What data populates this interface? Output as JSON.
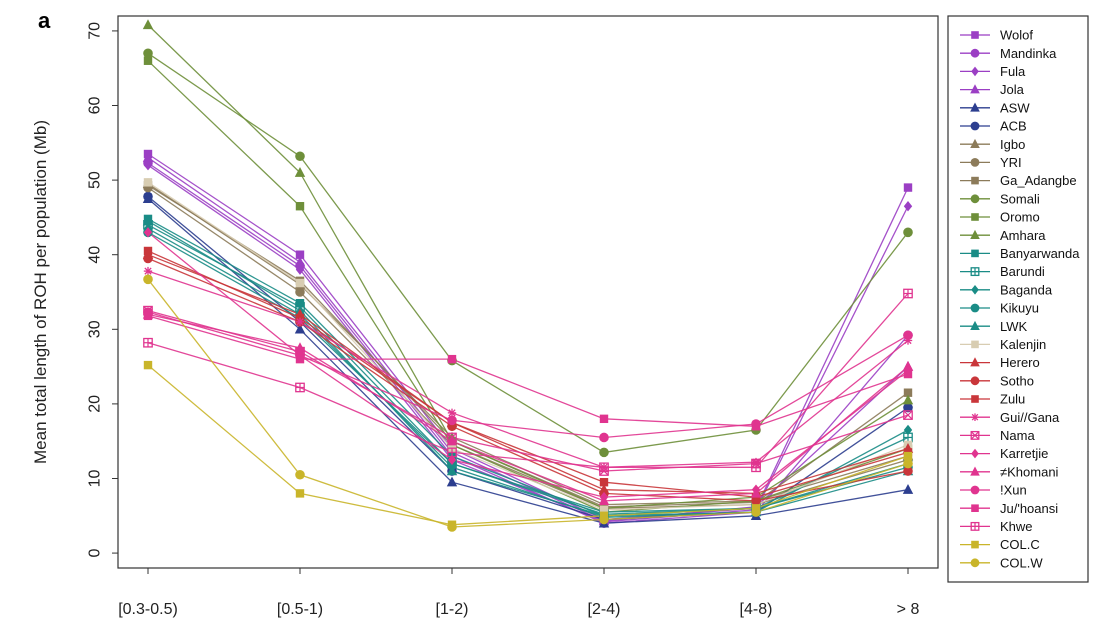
{
  "chart_data": {
    "type": "line",
    "panel_label": "a",
    "title": "",
    "xlabel": "",
    "ylabel": "Mean total length of ROH per population (Mb)",
    "categories": [
      "[0.3-0.5)",
      "[0.5-1)",
      "[1-2)",
      "[2-4)",
      "[4-8)",
      "> 8"
    ],
    "ylim": [
      -2,
      72
    ],
    "yticks": [
      0,
      10,
      20,
      30,
      40,
      50,
      60,
      70
    ],
    "grid": false,
    "legend_position": "right",
    "series": [
      {
        "name": "Wolof",
        "color": "#9b3fc4",
        "marker": "square",
        "values": [
          53.5,
          40.0,
          14.0,
          4.5,
          6.0,
          49.0
        ]
      },
      {
        "name": "Mandinka",
        "color": "#9b3fc4",
        "marker": "circle",
        "values": [
          52.3,
          38.5,
          13.0,
          4.0,
          5.5,
          29.2
        ]
      },
      {
        "name": "Fula",
        "color": "#9b3fc4",
        "marker": "diamond",
        "values": [
          52.0,
          38.0,
          12.5,
          4.2,
          5.8,
          46.5
        ]
      },
      {
        "name": "Jola",
        "color": "#9b3fc4",
        "marker": "triangle",
        "values": [
          53.0,
          39.0,
          13.5,
          4.3,
          6.2,
          25.0
        ]
      },
      {
        "name": "ASW",
        "color": "#2c3e8f",
        "marker": "triangle",
        "values": [
          47.5,
          30.0,
          9.5,
          4.0,
          5.0,
          8.5
        ]
      },
      {
        "name": "ACB",
        "color": "#2c3e8f",
        "marker": "circle",
        "values": [
          47.8,
          31.0,
          11.0,
          4.5,
          5.5,
          19.5
        ]
      },
      {
        "name": "Igbo",
        "color": "#8c7b5a",
        "marker": "triangle",
        "values": [
          49.5,
          36.0,
          15.5,
          6.5,
          7.0,
          13.0
        ]
      },
      {
        "name": "YRI",
        "color": "#8c7b5a",
        "marker": "circle",
        "values": [
          49.0,
          35.0,
          14.5,
          6.0,
          6.5,
          12.5
        ]
      },
      {
        "name": "Ga_Adangbe",
        "color": "#8c7b5a",
        "marker": "square",
        "values": [
          49.3,
          36.5,
          15.0,
          6.2,
          6.8,
          21.5
        ]
      },
      {
        "name": "Somali",
        "color": "#6e8f3a",
        "marker": "circle",
        "values": [
          67.0,
          53.2,
          25.8,
          13.5,
          16.5,
          43.0
        ]
      },
      {
        "name": "Oromo",
        "color": "#6e8f3a",
        "marker": "square",
        "values": [
          66.0,
          46.5,
          14.5,
          5.5,
          7.0,
          14.0
        ]
      },
      {
        "name": "Amhara",
        "color": "#6e8f3a",
        "marker": "triangle",
        "values": [
          70.8,
          51.0,
          15.0,
          6.0,
          7.5,
          20.5
        ]
      },
      {
        "name": "Banyarwanda",
        "color": "#1a8c86",
        "marker": "square",
        "values": [
          44.8,
          33.5,
          13.0,
          5.0,
          6.0,
          12.0
        ]
      },
      {
        "name": "Barundi",
        "color": "#1a8c86",
        "marker": "square-cross",
        "values": [
          44.0,
          33.0,
          12.0,
          5.2,
          6.0,
          15.5
        ]
      },
      {
        "name": "Baganda",
        "color": "#1a8c86",
        "marker": "diamond",
        "values": [
          43.5,
          32.0,
          11.5,
          4.8,
          5.5,
          16.5
        ]
      },
      {
        "name": "Kikuyu",
        "color": "#1a8c86",
        "marker": "circle",
        "values": [
          43.0,
          31.5,
          12.0,
          5.5,
          6.0,
          11.5
        ]
      },
      {
        "name": "LWK",
        "color": "#1a8c86",
        "marker": "triangle",
        "values": [
          44.5,
          32.5,
          11.0,
          5.0,
          5.5,
          11.0
        ]
      },
      {
        "name": "Kalenjin",
        "color": "#d8cdb2",
        "marker": "square",
        "values": [
          49.7,
          36.2,
          14.0,
          5.8,
          6.5,
          14.5
        ]
      },
      {
        "name": "Herero",
        "color": "#c9363a",
        "marker": "triangle",
        "values": [
          40.0,
          32.0,
          17.5,
          8.5,
          8.0,
          14.0
        ]
      },
      {
        "name": "Sotho",
        "color": "#c9363a",
        "marker": "circle",
        "values": [
          39.5,
          31.0,
          17.0,
          8.0,
          7.0,
          11.0
        ]
      },
      {
        "name": "Zulu",
        "color": "#c9363a",
        "marker": "square",
        "values": [
          40.5,
          31.5,
          17.5,
          9.5,
          7.5,
          13.5
        ]
      },
      {
        "name": "Gui//Gana",
        "color": "#e0348f",
        "marker": "asterisk",
        "values": [
          37.8,
          31.0,
          18.8,
          11.5,
          12.2,
          28.5
        ]
      },
      {
        "name": "Nama",
        "color": "#e0348f",
        "marker": "square-x",
        "values": [
          32.5,
          27.0,
          15.5,
          11.0,
          12.0,
          18.5
        ]
      },
      {
        "name": "Karretjie",
        "color": "#e0348f",
        "marker": "diamond",
        "values": [
          43.0,
          26.5,
          12.5,
          7.5,
          8.5,
          24.5
        ]
      },
      {
        "name": "≠Khomani",
        "color": "#e0348f",
        "marker": "triangle",
        "values": [
          32.0,
          27.5,
          15.0,
          7.0,
          8.0,
          25.0
        ]
      },
      {
        "name": "!Xun",
        "color": "#e0348f",
        "marker": "circle",
        "values": [
          32.3,
          26.5,
          17.8,
          15.5,
          17.3,
          29.2
        ]
      },
      {
        "name": "Ju/'hoansi",
        "color": "#e0348f",
        "marker": "square",
        "values": [
          31.8,
          26.0,
          26.0,
          18.0,
          17.0,
          24.0
        ]
      },
      {
        "name": "Khwe",
        "color": "#e0348f",
        "marker": "square-cross",
        "values": [
          28.2,
          22.2,
          13.5,
          11.5,
          11.5,
          34.8
        ]
      },
      {
        "name": "COL.C",
        "color": "#c9b52a",
        "marker": "square",
        "values": [
          25.2,
          8.0,
          3.8,
          5.0,
          6.0,
          13.0
        ]
      },
      {
        "name": "COL.W",
        "color": "#c9b52a",
        "marker": "circle",
        "values": [
          36.7,
          10.5,
          3.5,
          4.5,
          5.5,
          12.0
        ]
      }
    ]
  }
}
